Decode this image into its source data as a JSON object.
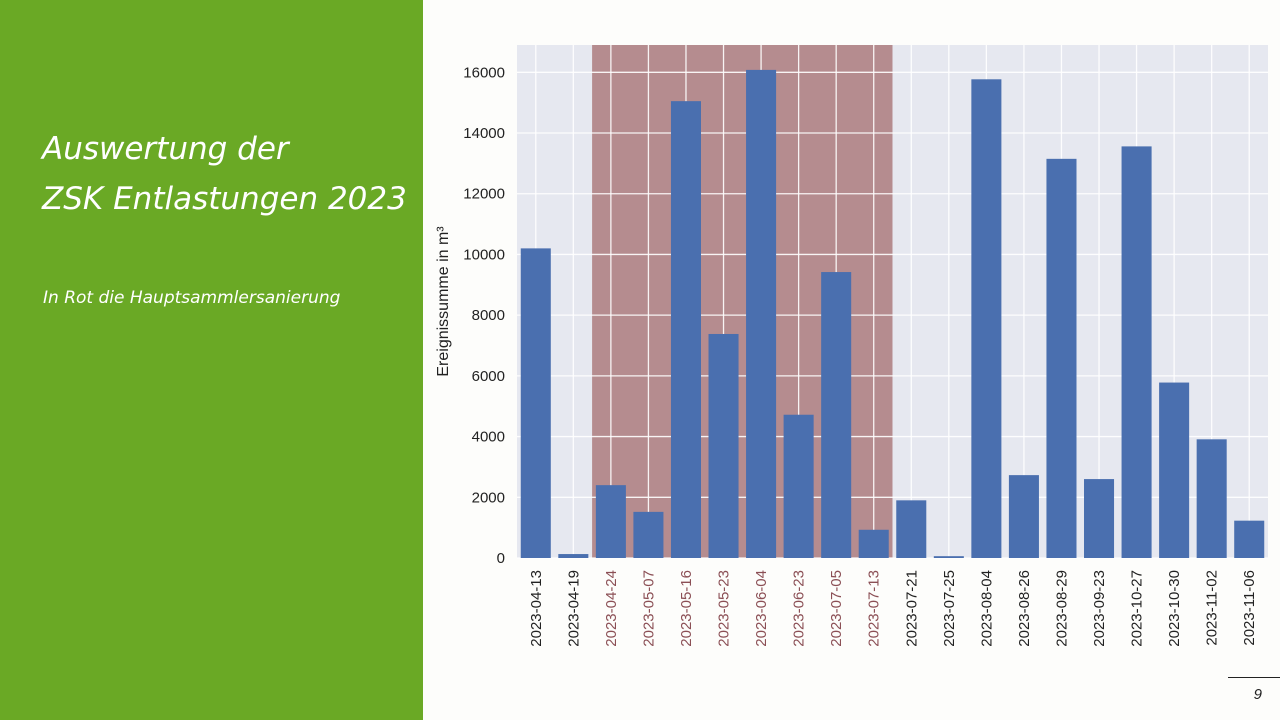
{
  "slide": {
    "title_line1": "Auswertung der",
    "title_line2": "ZSK Entlastungen 2023",
    "subtitle": "In Rot die Hauptsammlersanierung",
    "page_number": "9"
  },
  "colors": {
    "panel_green": "#6aa925",
    "bar_blue": "#4a6faf",
    "highlight_red": "#b58c8f",
    "highlight_label": "#8b4f55",
    "plot_background": "#e6e8f0"
  },
  "chart_data": {
    "type": "bar",
    "categories": [
      "2023-04-13",
      "2023-04-19",
      "2023-04-24",
      "2023-05-07",
      "2023-05-16",
      "2023-05-23",
      "2023-06-04",
      "2023-06-23",
      "2023-07-05",
      "2023-07-13",
      "2023-07-21",
      "2023-07-25",
      "2023-08-04",
      "2023-08-26",
      "2023-08-29",
      "2023-09-23",
      "2023-10-27",
      "2023-10-30",
      "2023-11-02",
      "2023-11-06"
    ],
    "values": [
      10200,
      130,
      2400,
      1520,
      15050,
      7380,
      16080,
      4720,
      9420,
      930,
      1900,
      60,
      15770,
      2730,
      13150,
      2600,
      13560,
      5780,
      3910,
      1230
    ],
    "title": "",
    "xlabel": "",
    "ylabel": "Ereignissumme in m³",
    "ylim": [
      0,
      16900
    ],
    "yticks": [
      0,
      2000,
      4000,
      6000,
      8000,
      10000,
      12000,
      14000,
      16000
    ],
    "grid": true,
    "legend": "none",
    "highlight_range": [
      "2023-04-24",
      "2023-07-13"
    ]
  }
}
